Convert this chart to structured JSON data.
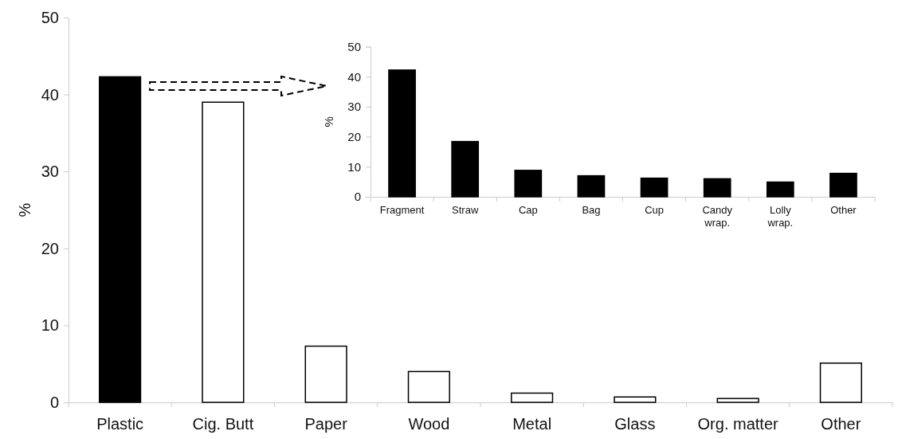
{
  "chart_data": [
    {
      "type": "bar",
      "ylabel": "%",
      "categories": [
        "Plastic",
        "Cig. Butt",
        "Paper",
        "Wood",
        "Metal",
        "Glass",
        "Org. matter",
        "Other"
      ],
      "values": [
        42.3,
        39.0,
        7.3,
        4.0,
        1.2,
        0.7,
        0.5,
        5.1
      ],
      "colors": [
        "#000000",
        "#ffffff",
        "#ffffff",
        "#ffffff",
        "#ffffff",
        "#ffffff",
        "#ffffff",
        "#ffffff"
      ],
      "ylim": [
        0,
        50
      ],
      "yticks": [
        0,
        10,
        20,
        30,
        40,
        50
      ],
      "grid": false
    },
    {
      "type": "bar",
      "ylabel": "%",
      "categories": [
        "Fragment",
        "Straw",
        "Cap",
        "Bag",
        "Cup",
        "Candy wrap.",
        "Lolly wrap.",
        "Other"
      ],
      "values": [
        42.2,
        18.4,
        8.8,
        7.0,
        6.2,
        6.0,
        4.9,
        7.8
      ],
      "color": "#000000",
      "ylim": [
        0,
        50
      ],
      "yticks": [
        0,
        10,
        20,
        30,
        40,
        50
      ],
      "grid": false
    }
  ]
}
